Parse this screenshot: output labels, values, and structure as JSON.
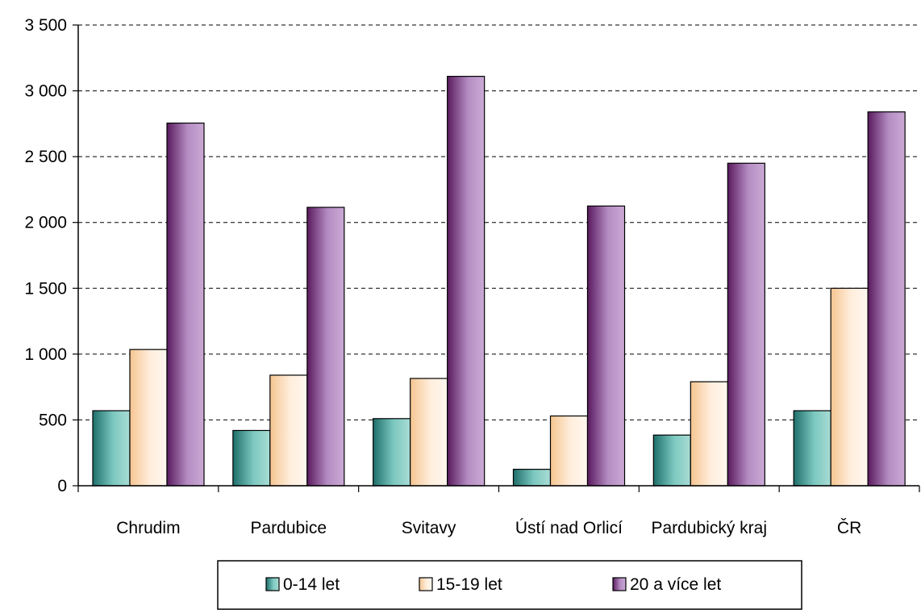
{
  "chart_data": {
    "type": "bar",
    "categories": [
      "Chrudim",
      "Pardubice",
      "Svitavy",
      "Ústí nad Orlicí",
      "Pardubický kraj",
      "ČR"
    ],
    "series": [
      {
        "name": "0-14 let",
        "values": [
          570,
          420,
          510,
          125,
          385,
          570
        ],
        "color": "#2a8a82"
      },
      {
        "name": "15-19 let",
        "values": [
          1035,
          840,
          815,
          530,
          790,
          1500
        ],
        "color": "#ffc89a"
      },
      {
        "name": "20 a více let",
        "values": [
          2755,
          2115,
          3110,
          2125,
          2450,
          2840
        ],
        "color": "#8a3a8a"
      }
    ],
    "y_ticks": [
      "0",
      "500",
      "1 000",
      "1 500",
      "2 000",
      "2 500",
      "3 000",
      "3 500"
    ],
    "ylim": [
      0,
      3500
    ],
    "grid": "horizontal dashed",
    "legend_position": "bottom"
  }
}
